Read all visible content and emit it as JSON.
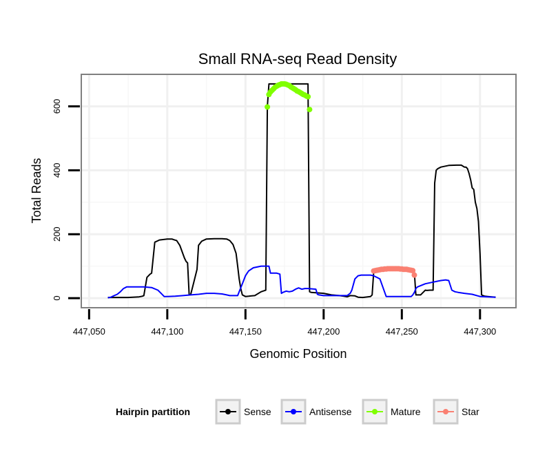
{
  "chart_data": {
    "type": "line",
    "title": "Small RNA-seq Read Density",
    "xlabel": "Genomic Position",
    "ylabel": "Total Reads",
    "xlim": [
      447045,
      447323
    ],
    "ylim": [
      -30,
      700
    ],
    "x_ticks": [
      {
        "value": 447050,
        "label": "447,050"
      },
      {
        "value": 447100,
        "label": "447,100"
      },
      {
        "value": 447150,
        "label": "447,150"
      },
      {
        "value": 447200,
        "label": "447,200"
      },
      {
        "value": 447250,
        "label": "447,250"
      },
      {
        "value": 447300,
        "label": "447,300"
      }
    ],
    "y_ticks": [
      {
        "value": 0,
        "label": "0"
      },
      {
        "value": 200,
        "label": "200"
      },
      {
        "value": 400,
        "label": "400"
      },
      {
        "value": 600,
        "label": "600"
      }
    ],
    "grid": true,
    "legend": {
      "title": "Hairpin partition",
      "position": "bottom"
    },
    "series": [
      {
        "name": "Sense",
        "color": "#000000",
        "style": "line",
        "x": [
          447062,
          447075,
          447082,
          447084,
          447085,
          447087,
          447088,
          447089,
          447090,
          447092,
          447095,
          447100,
          447103,
          447104,
          447106,
          447108,
          447111,
          447112,
          447113,
          447114,
          447115,
          447117,
          447119,
          447120,
          447122,
          447125,
          447130,
          447135,
          447138,
          447140,
          447142,
          447144,
          447145,
          447146,
          447147,
          447148,
          447150,
          447152,
          447154,
          447156,
          447160,
          447163,
          447164,
          447165,
          447190,
          447191,
          447192,
          447200,
          447205,
          447210,
          447213,
          447215,
          447217,
          447220,
          447222,
          447225,
          447230,
          447231,
          447232,
          447234,
          447236,
          447238,
          447240,
          447245,
          447250,
          447255,
          447257,
          447258,
          447259,
          447260,
          447262,
          447264,
          447265,
          447266,
          447268,
          447270,
          447271,
          447272,
          447273,
          447275,
          447280,
          447285,
          447288,
          447290,
          447291,
          447292,
          447293,
          447294,
          447295,
          447296,
          447297,
          447298,
          447299,
          447300,
          447301,
          447302,
          447303,
          447305,
          447310
        ],
        "y": [
          2,
          2,
          4,
          6,
          8,
          65,
          70,
          75,
          78,
          175,
          182,
          185,
          185,
          183,
          180,
          165,
          125,
          115,
          110,
          10,
          12,
          50,
          90,
          165,
          178,
          185,
          186,
          186,
          185,
          180,
          168,
          140,
          100,
          60,
          30,
          10,
          5,
          6,
          7,
          8,
          20,
          25,
          600,
          670,
          670,
          20,
          18,
          15,
          10,
          8,
          6,
          4,
          8,
          7,
          3,
          2,
          5,
          10,
          80,
          87,
          87,
          87,
          87,
          87,
          87,
          87,
          85,
          80,
          10,
          10,
          10,
          20,
          25,
          24,
          25,
          25,
          360,
          400,
          405,
          410,
          415,
          416,
          416,
          410,
          410,
          405,
          390,
          370,
          345,
          340,
          300,
          280,
          240,
          140,
          10,
          8,
          6,
          5,
          3
        ]
      },
      {
        "name": "Antisense",
        "color": "#0000ff",
        "style": "line",
        "x": [
          447062,
          447064,
          447066,
          447068,
          447070,
          447072,
          447074,
          447080,
          447085,
          447090,
          447094,
          447096,
          447098,
          447100,
          447105,
          447110,
          447115,
          447120,
          447125,
          447130,
          447135,
          447138,
          447140,
          447145,
          447146,
          447148,
          447150,
          447152,
          447155,
          447160,
          447165,
          447166,
          447170,
          447172,
          447173,
          447174,
          447176,
          447178,
          447180,
          447182,
          447184,
          447186,
          447188,
          447190,
          447195,
          447196,
          447197,
          447200,
          447205,
          447215,
          447217,
          447218,
          447220,
          447222,
          447224,
          447230,
          447232,
          447234,
          447236,
          447240,
          447245,
          447250,
          447256,
          447257,
          447258,
          447259,
          447260,
          447265,
          447270,
          447275,
          447278,
          447280,
          447282,
          447284,
          447286,
          447290,
          447295,
          447300,
          447305,
          447310
        ],
        "y": [
          1,
          3,
          8,
          12,
          20,
          30,
          35,
          35,
          35,
          33,
          25,
          15,
          5,
          5,
          6,
          8,
          10,
          12,
          15,
          15,
          13,
          10,
          8,
          8,
          20,
          45,
          70,
          85,
          95,
          100,
          100,
          78,
          78,
          75,
          15,
          18,
          22,
          20,
          22,
          28,
          32,
          28,
          30,
          30,
          28,
          12,
          10,
          8,
          8,
          8,
          15,
          25,
          60,
          70,
          72,
          72,
          70,
          65,
          60,
          5,
          5,
          5,
          5,
          10,
          18,
          30,
          35,
          45,
          50,
          55,
          57,
          55,
          25,
          20,
          18,
          15,
          12,
          5,
          4,
          3
        ]
      },
      {
        "name": "Mature",
        "color": "#80ff00",
        "style": "points",
        "x": [
          447164,
          447165,
          447166,
          447167,
          447168,
          447169,
          447170,
          447171,
          447172,
          447173,
          447174,
          447175,
          447176,
          447177,
          447178,
          447179,
          447180,
          447181,
          447182,
          447183,
          447184,
          447185,
          447186,
          447187,
          447188,
          447189,
          447190,
          447191
        ],
        "y": [
          598,
          637,
          645,
          650,
          655,
          660,
          663,
          666,
          668,
          670,
          670,
          670,
          669,
          667,
          665,
          661,
          658,
          655,
          652,
          648,
          646,
          643,
          640,
          637,
          635,
          632,
          630,
          590
        ]
      },
      {
        "name": "Star",
        "color": "#fa8072",
        "style": "points",
        "x": [
          447232,
          447233,
          447234,
          447235,
          447236,
          447237,
          447238,
          447239,
          447240,
          447241,
          447242,
          447243,
          447244,
          447245,
          447246,
          447247,
          447248,
          447249,
          447250,
          447251,
          447252,
          447253,
          447254,
          447255,
          447256,
          447257,
          447258
        ],
        "y": [
          85,
          86,
          87,
          88,
          89,
          90,
          90,
          91,
          91,
          92,
          92,
          92,
          92,
          92,
          92,
          92,
          92,
          91,
          91,
          90,
          90,
          90,
          89,
          88,
          87,
          86,
          72
        ]
      }
    ]
  }
}
